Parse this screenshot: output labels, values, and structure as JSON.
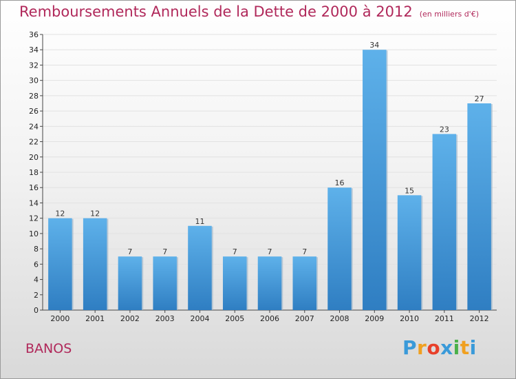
{
  "chart_data": {
    "type": "bar",
    "title": "Remboursements Annuels de la Dette de 2000 à 2012",
    "unit": "(en milliers d'€)",
    "xlabel": "",
    "ylabel": "",
    "categories": [
      "2000",
      "2001",
      "2002",
      "2003",
      "2004",
      "2005",
      "2006",
      "2007",
      "2008",
      "2009",
      "2010",
      "2011",
      "2012"
    ],
    "values": [
      12,
      12,
      7,
      7,
      11,
      7,
      7,
      7,
      16,
      34,
      15,
      23,
      27
    ],
    "ylim": [
      0,
      36
    ],
    "ytick_step": 2,
    "grid": true,
    "bar_color": "#4a9fe0"
  },
  "commune": "BANOS",
  "logo": {
    "letters": [
      "P",
      "r",
      "o",
      "x",
      "i",
      "t",
      "i"
    ],
    "colors": [
      "#3a9ad9",
      "#f0a020",
      "#e8402a",
      "#3a9ad9",
      "#4ab04a",
      "#f0a020",
      "#3a9ad9"
    ]
  }
}
